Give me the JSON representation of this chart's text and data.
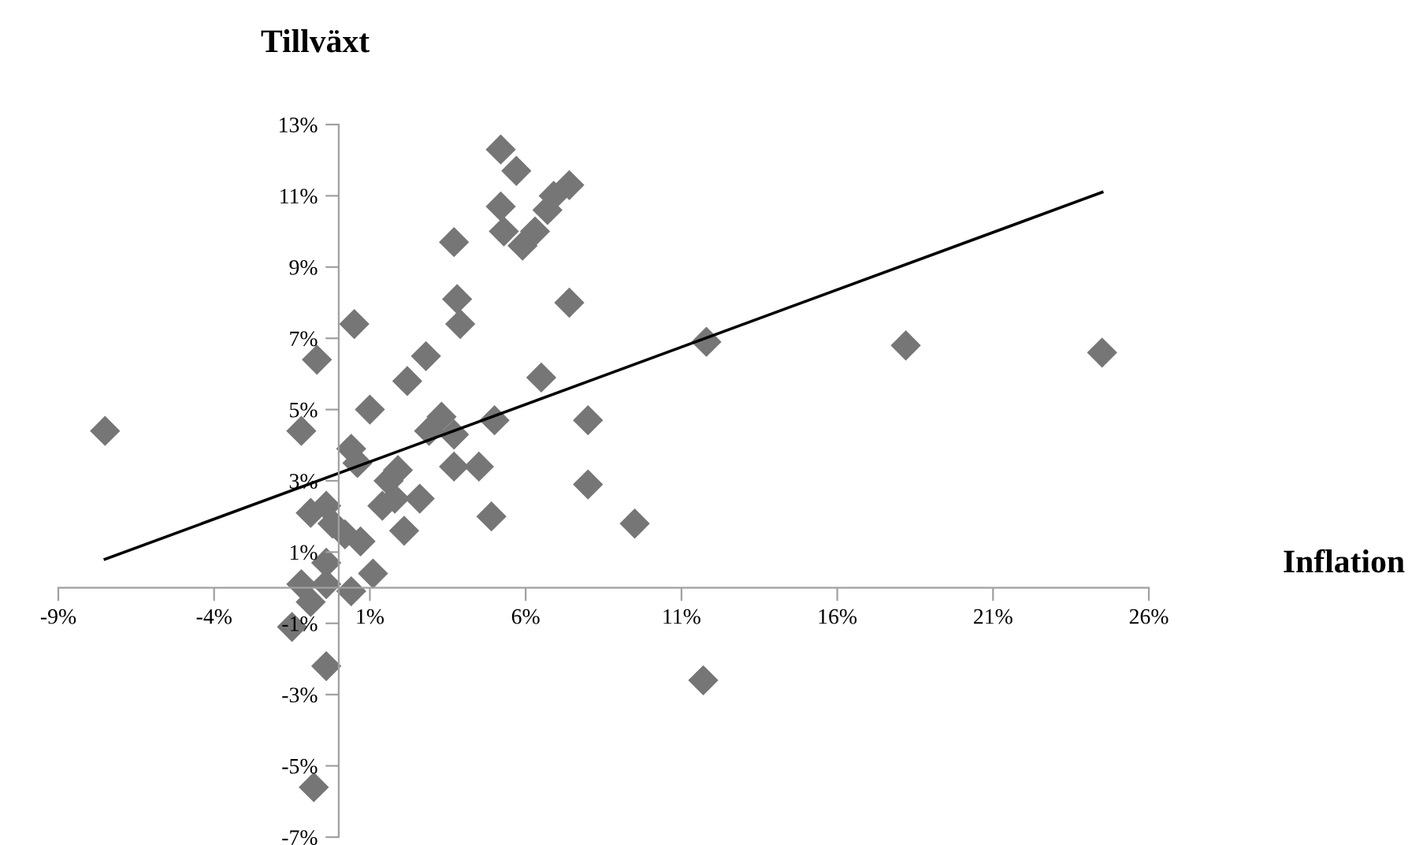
{
  "chart_data": {
    "type": "scatter",
    "xlabel": "Inflation",
    "ylabel": "Tillväxt",
    "xlim": [
      -9,
      26
    ],
    "ylim": [
      -7,
      13
    ],
    "xticks": [
      {
        "value": -9,
        "label": "-9%"
      },
      {
        "value": -4,
        "label": "-4%"
      },
      {
        "value": 1,
        "label": "1%"
      },
      {
        "value": 6,
        "label": "6%"
      },
      {
        "value": 11,
        "label": "11%"
      },
      {
        "value": 16,
        "label": "16%"
      },
      {
        "value": 21,
        "label": "21%"
      },
      {
        "value": 26,
        "label": "26%"
      }
    ],
    "yticks": [
      {
        "value": -7,
        "label": "-7%"
      },
      {
        "value": -5,
        "label": "-5%"
      },
      {
        "value": -3,
        "label": "-3%"
      },
      {
        "value": -1,
        "label": "-1%"
      },
      {
        "value": 1,
        "label": "1%"
      },
      {
        "value": 3,
        "label": "3%"
      },
      {
        "value": 5,
        "label": "5%"
      },
      {
        "value": 7,
        "label": "7%"
      },
      {
        "value": 9,
        "label": "9%"
      },
      {
        "value": 11,
        "label": "11%"
      },
      {
        "value": 13,
        "label": "13%"
      }
    ],
    "grid": false,
    "legend": false,
    "marker": "diamond",
    "series": [
      {
        "color": "#767676",
        "x": [
          -7.5,
          -1.2,
          0.6,
          1.6,
          1.9,
          3.7,
          4.5,
          1.4,
          1.8,
          2.6,
          2.1,
          4.9,
          8.0,
          9.5,
          -0.9,
          -0.4,
          -0.2,
          0.2,
          0.7,
          -0.4,
          1.1,
          -1.2,
          -0.4,
          0.4,
          -0.9,
          -1.5,
          -0.4,
          -0.8,
          11.7,
          5.2,
          5.7,
          5.2,
          5.3,
          5.9,
          6.3,
          6.7,
          6.9,
          7.4,
          3.7,
          3.8,
          3.9,
          7.4,
          0.5,
          -0.7,
          2.8,
          2.2,
          1.0,
          6.5,
          8.0,
          5.0,
          3.3,
          2.9,
          3.7,
          0.4,
          11.8,
          18.2,
          24.5
        ],
        "values": [
          4.4,
          4.4,
          3.5,
          3.0,
          3.3,
          3.4,
          3.4,
          2.3,
          2.5,
          2.5,
          1.6,
          2.0,
          2.9,
          1.8,
          2.1,
          2.3,
          1.8,
          1.5,
          1.3,
          0.7,
          0.4,
          0.1,
          0.1,
          -0.1,
          -0.4,
          -1.1,
          -2.2,
          -5.6,
          -2.6,
          12.3,
          11.7,
          10.7,
          10.0,
          9.6,
          10.0,
          10.6,
          11.0,
          11.3,
          9.7,
          8.1,
          7.4,
          8.0,
          7.4,
          6.4,
          6.5,
          5.8,
          5.0,
          5.9,
          4.7,
          4.7,
          4.8,
          4.4,
          4.3,
          3.9,
          6.9,
          6.8,
          6.6
        ]
      },
      {
        "type": "line",
        "color": "#000000",
        "marker": "none",
        "line_style": "solid",
        "x": [
          -7.5,
          24.5
        ],
        "values": [
          0.8,
          11.1
        ]
      }
    ]
  }
}
